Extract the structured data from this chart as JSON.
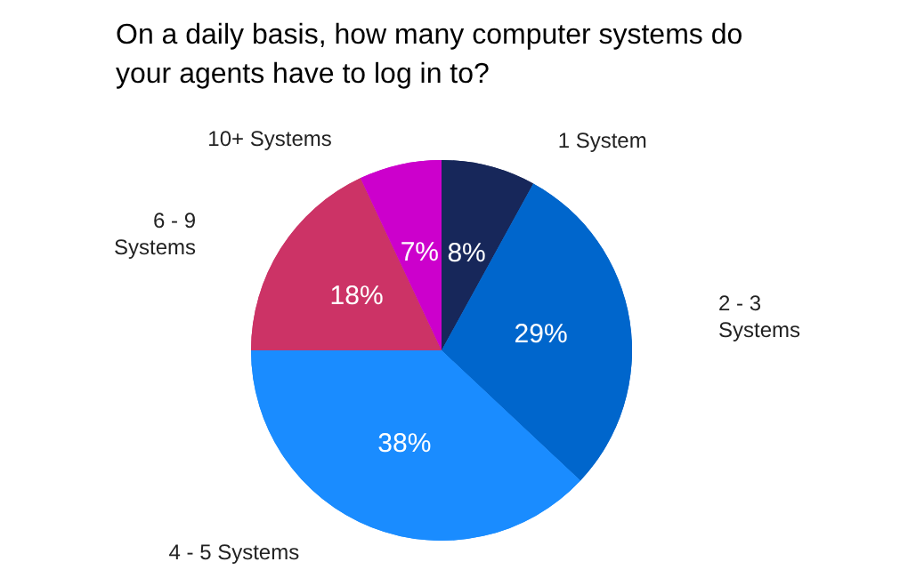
{
  "chart_data": {
    "type": "pie",
    "title": "On a daily basis, how many computer systems do your agents have to log in to?",
    "categories": [
      "1 System",
      "2 - 3\nSystems",
      "4 - 5 Systems",
      "6 - 9\nSystems",
      "10+ Systems"
    ],
    "values": [
      8,
      29,
      38,
      18,
      7
    ],
    "value_labels": [
      "8%",
      "29%",
      "38%",
      "18%",
      "7%"
    ],
    "colors": [
      "#17275a",
      "#0066cc",
      "#1a8cff",
      "#cc3366",
      "#cc00cc"
    ],
    "legend": false
  }
}
